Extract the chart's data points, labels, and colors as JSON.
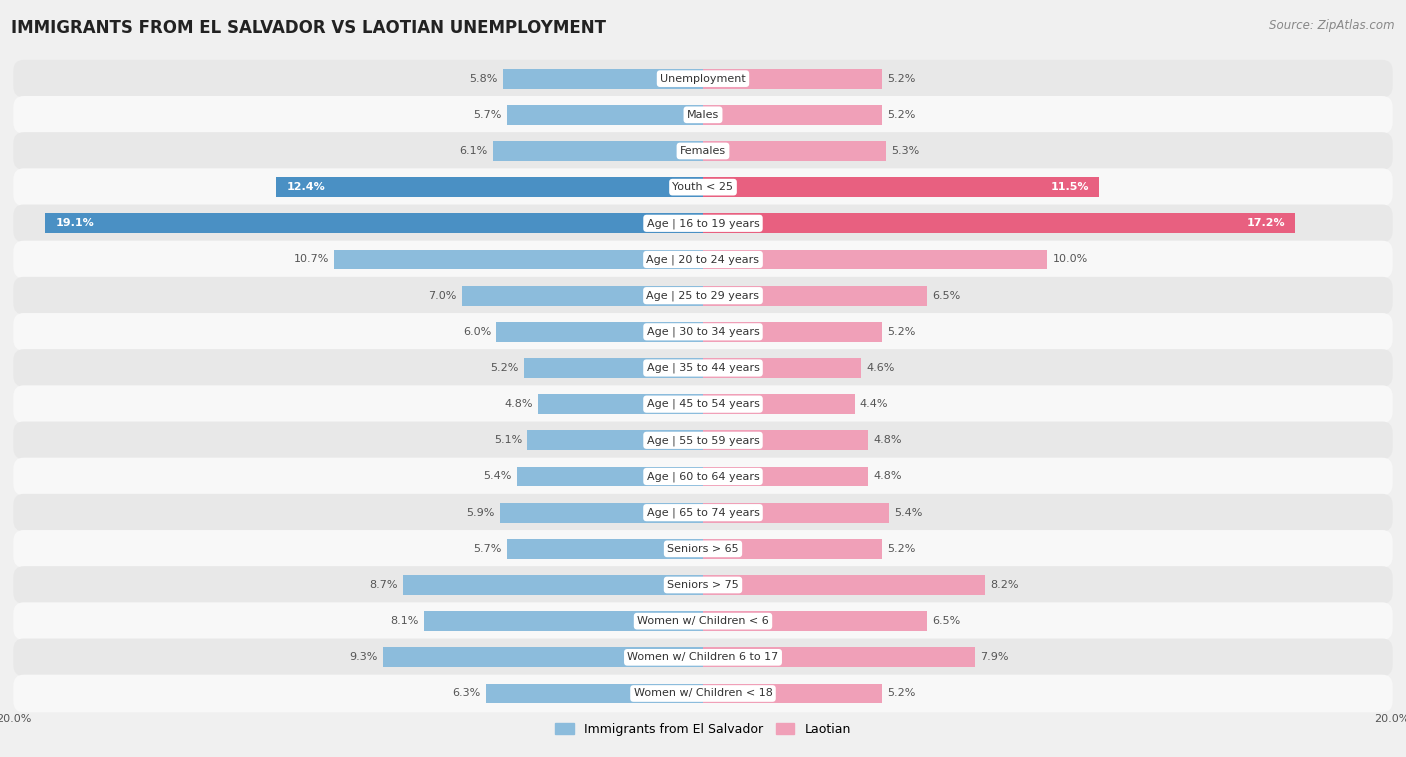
{
  "title": "IMMIGRANTS FROM EL SALVADOR VS LAOTIAN UNEMPLOYMENT",
  "source": "Source: ZipAtlas.com",
  "categories": [
    "Unemployment",
    "Males",
    "Females",
    "Youth < 25",
    "Age | 16 to 19 years",
    "Age | 20 to 24 years",
    "Age | 25 to 29 years",
    "Age | 30 to 34 years",
    "Age | 35 to 44 years",
    "Age | 45 to 54 years",
    "Age | 55 to 59 years",
    "Age | 60 to 64 years",
    "Age | 65 to 74 years",
    "Seniors > 65",
    "Seniors > 75",
    "Women w/ Children < 6",
    "Women w/ Children 6 to 17",
    "Women w/ Children < 18"
  ],
  "left_values": [
    5.8,
    5.7,
    6.1,
    12.4,
    19.1,
    10.7,
    7.0,
    6.0,
    5.2,
    4.8,
    5.1,
    5.4,
    5.9,
    5.7,
    8.7,
    8.1,
    9.3,
    6.3
  ],
  "right_values": [
    5.2,
    5.2,
    5.3,
    11.5,
    17.2,
    10.0,
    6.5,
    5.2,
    4.6,
    4.4,
    4.8,
    4.8,
    5.4,
    5.2,
    8.2,
    6.5,
    7.9,
    5.2
  ],
  "left_color": "#8cbcdc",
  "right_color": "#f0a0b8",
  "highlight_left_color": "#4a90c4",
  "highlight_right_color": "#e86080",
  "highlight_rows": [
    3,
    4
  ],
  "axis_max": 20.0,
  "legend_left": "Immigrants from El Salvador",
  "legend_right": "Laotian",
  "bg_color": "#f0f0f0",
  "row_bg_even": "#e8e8e8",
  "row_bg_odd": "#f8f8f8",
  "title_fontsize": 12,
  "source_fontsize": 8.5,
  "label_fontsize": 8,
  "value_fontsize": 8,
  "bar_height": 0.55
}
